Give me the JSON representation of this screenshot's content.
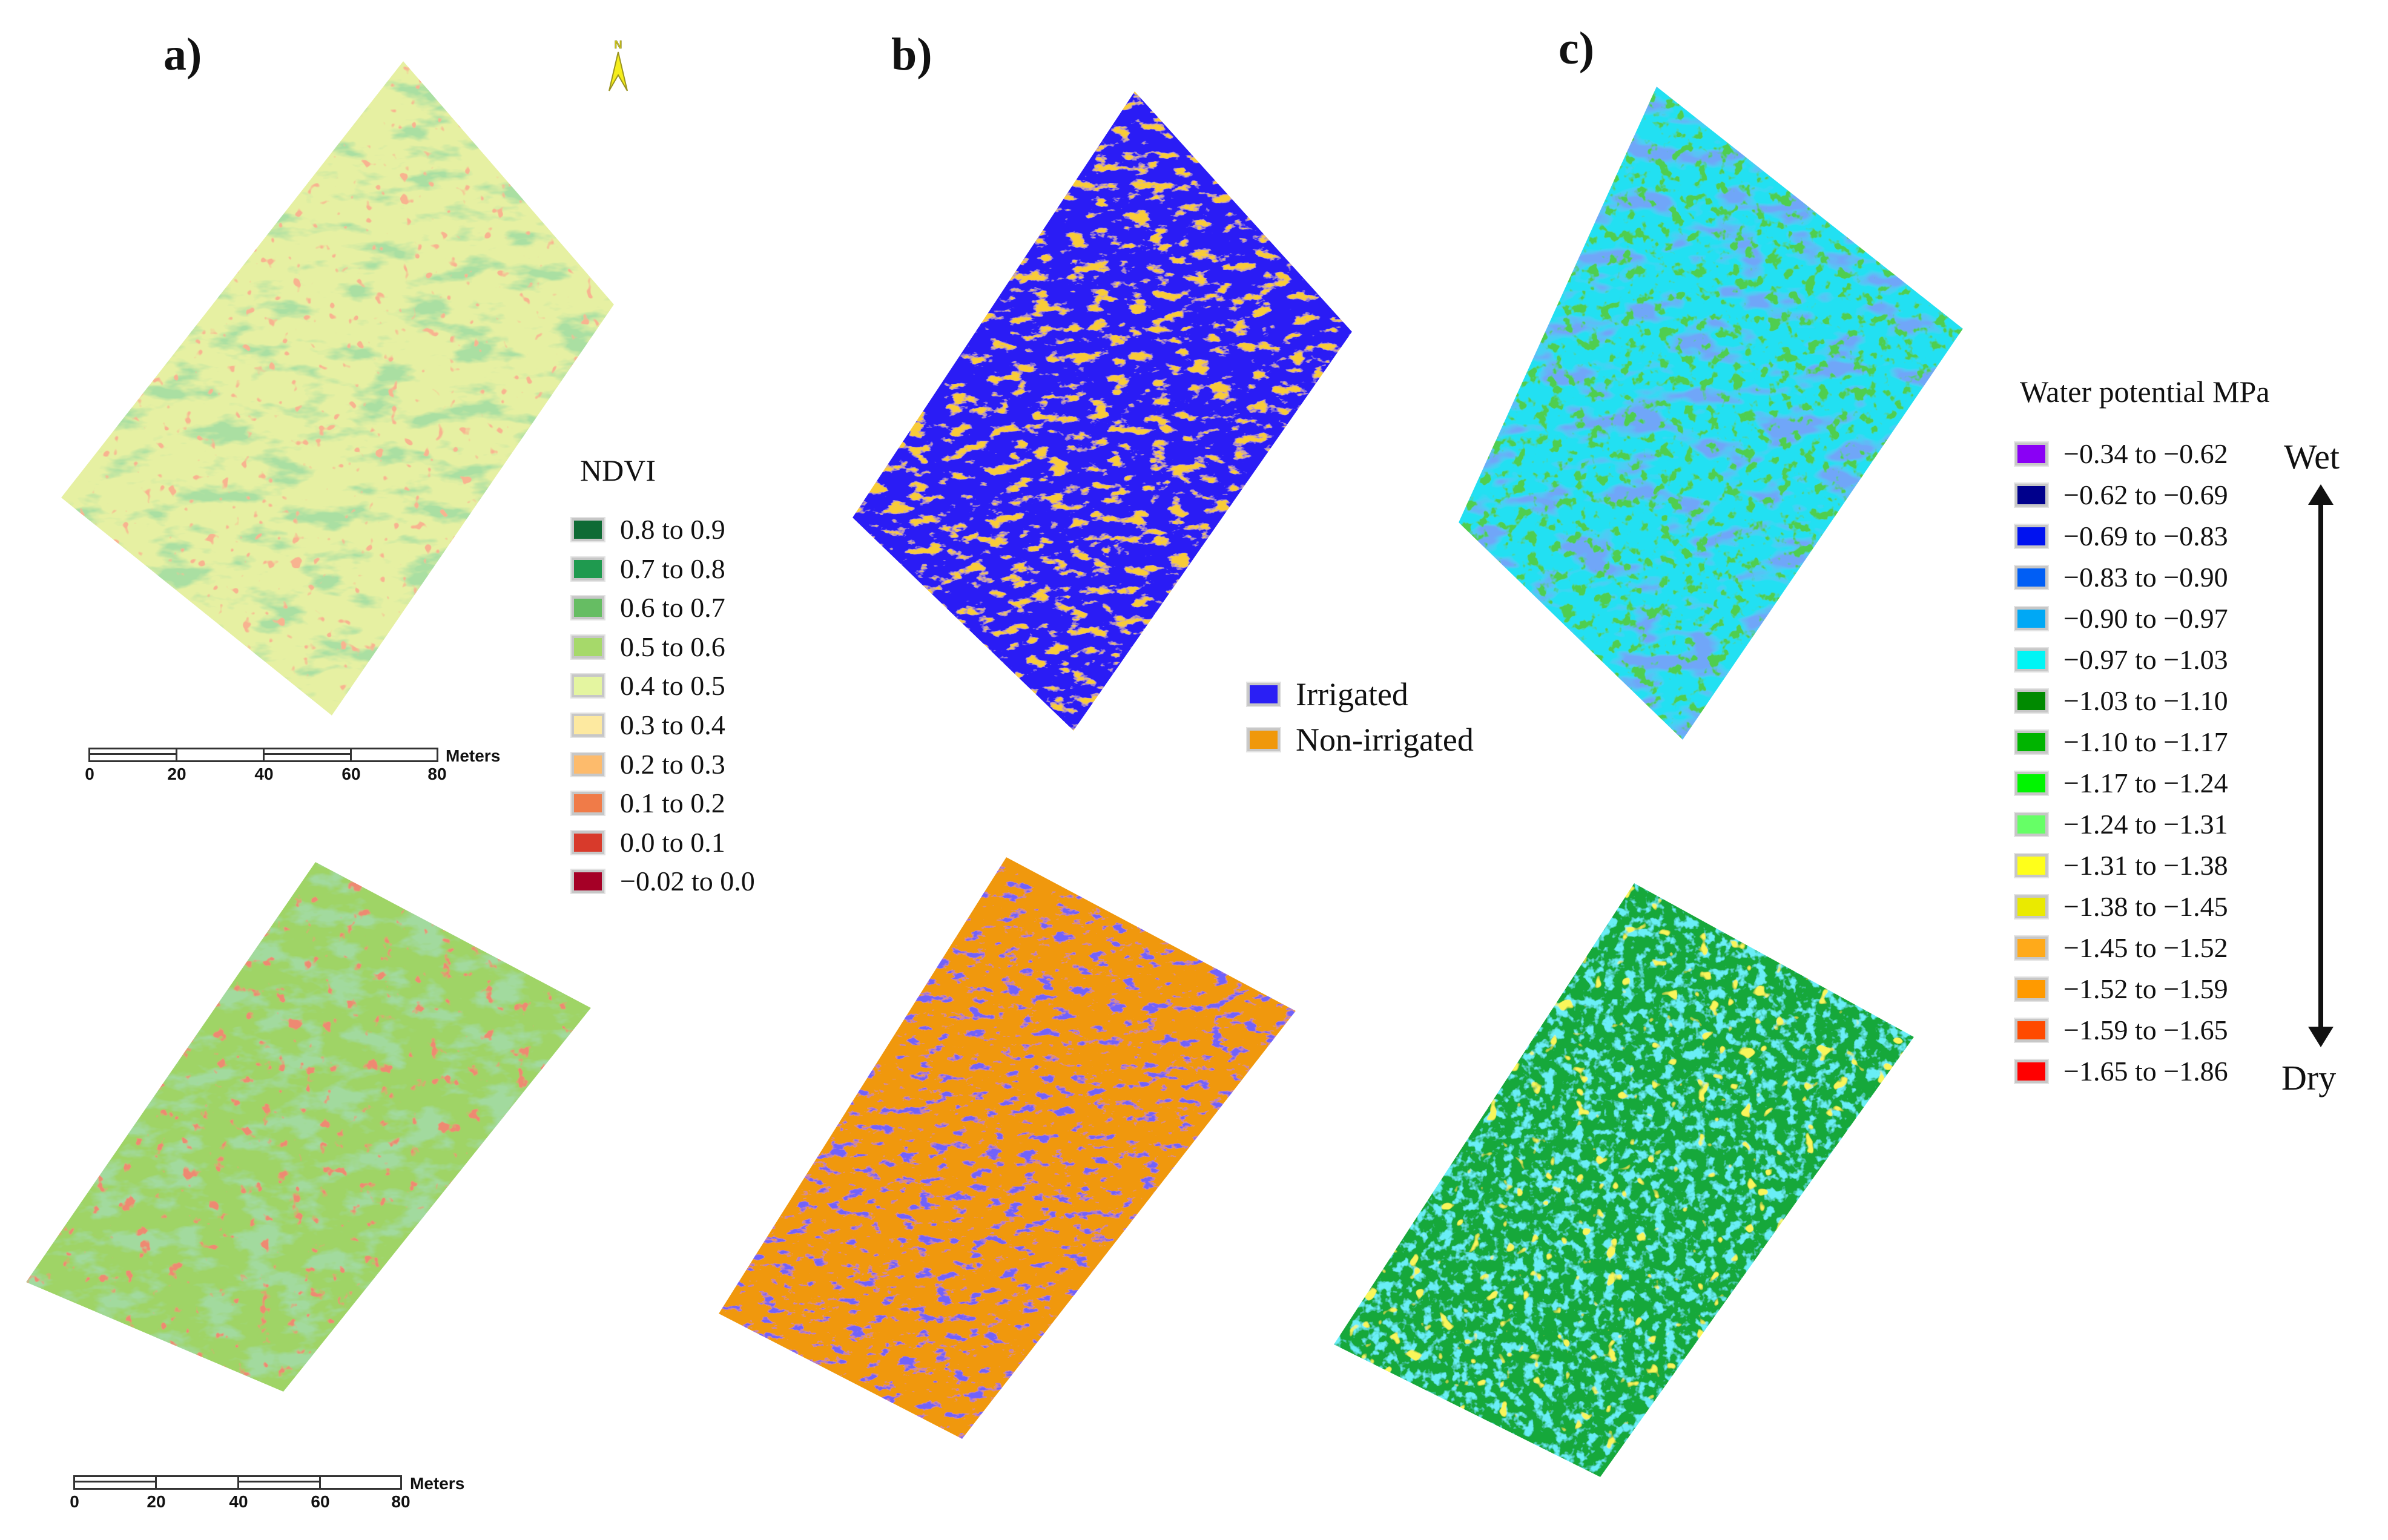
{
  "panels": {
    "a": {
      "label": "a)"
    },
    "b": {
      "label": "b)"
    },
    "c": {
      "label": "c)"
    }
  },
  "north_arrow": {
    "letter": "N",
    "icon": "north-arrow-icon",
    "color": "#f5ee1c"
  },
  "ndvi_legend": {
    "title": "NDVI",
    "items": [
      {
        "label": "0.8 to 0.9",
        "color": "#0f6b35"
      },
      {
        "label": "0.7 to 0.8",
        "color": "#1f9a4f"
      },
      {
        "label": "0.6 to 0.7",
        "color": "#66bd63"
      },
      {
        "label": "0.5 to 0.6",
        "color": "#a6d96a"
      },
      {
        "label": "0.4 to 0.5",
        "color": "#e4f5a0"
      },
      {
        "label": "0.3 to 0.4",
        "color": "#fde9a0"
      },
      {
        "label": "0.2 to 0.3",
        "color": "#fdbb6c"
      },
      {
        "label": "0.1 to 0.2",
        "color": "#f07b48"
      },
      {
        "label": "0.0 to 0.1",
        "color": "#d83a2b"
      },
      {
        "label": "−0.02 to 0.0",
        "color": "#a50026"
      }
    ]
  },
  "irrigation_legend": {
    "items": [
      {
        "label": "Irrigated",
        "color": "#2a1ff5"
      },
      {
        "label": "Non-irrigated",
        "color": "#f0980a"
      }
    ]
  },
  "water_potential_legend": {
    "title": "Water potential MPa",
    "wet_label": "Wet",
    "dry_label": "Dry",
    "items": [
      {
        "label": "−0.34 to −0.62",
        "color": "#8a00f5"
      },
      {
        "label": "−0.62 to −0.69",
        "color": "#00008c"
      },
      {
        "label": "−0.69 to −0.83",
        "color": "#0012f0"
      },
      {
        "label": "−0.83 to −0.90",
        "color": "#005ef5"
      },
      {
        "label": "−0.90 to −0.97",
        "color": "#00a8f5"
      },
      {
        "label": "−0.97 to −1.03",
        "color": "#00f5f5"
      },
      {
        "label": "−1.03 to −1.10",
        "color": "#008a00"
      },
      {
        "label": "−1.10 to −1.17",
        "color": "#00b400"
      },
      {
        "label": "−1.17 to −1.24",
        "color": "#00f500"
      },
      {
        "label": "−1.24 to −1.31",
        "color": "#66ff66"
      },
      {
        "label": "−1.31 to −1.38",
        "color": "#ffff1a"
      },
      {
        "label": "−1.38 to −1.45",
        "color": "#eaea00"
      },
      {
        "label": "−1.45 to −1.52",
        "color": "#ffaa1a"
      },
      {
        "label": "−1.52 to −1.59",
        "color": "#ff9a00"
      },
      {
        "label": "−1.59 to −1.65",
        "color": "#ff4a00"
      },
      {
        "label": "−1.65 to −1.86",
        "color": "#ff0000"
      }
    ]
  },
  "scale_bars": [
    {
      "unit": "Meters",
      "ticks": [
        "0",
        "20",
        "40",
        "60",
        "80"
      ]
    },
    {
      "unit": "Meters",
      "ticks": [
        "0",
        "20",
        "40",
        "60",
        "80"
      ]
    }
  ],
  "maps": [
    {
      "id": "ndvi-top",
      "base": "#e6f0a2",
      "accent": "#6fbf5e",
      "spot": "#e9603c"
    },
    {
      "id": "ndvi-bottom",
      "base": "#9fd466",
      "accent": "#5fb65a",
      "spot": "#d84a2e"
    },
    {
      "id": "irrigation-top",
      "base": "#2a1ff5",
      "accent": "#f0980a",
      "spot": "#f0980a"
    },
    {
      "id": "irrigation-bottom",
      "base": "#f0980a",
      "accent": "#2a1ff5",
      "spot": "#2a1ff5"
    },
    {
      "id": "water-potential-top",
      "base": "#22c4f2",
      "accent": "#1a9a1a",
      "spot": "#2a5cf0"
    },
    {
      "id": "water-potential-bottom",
      "base": "#19a83a",
      "accent": "#22d8e8",
      "spot": "#eeee10"
    }
  ]
}
